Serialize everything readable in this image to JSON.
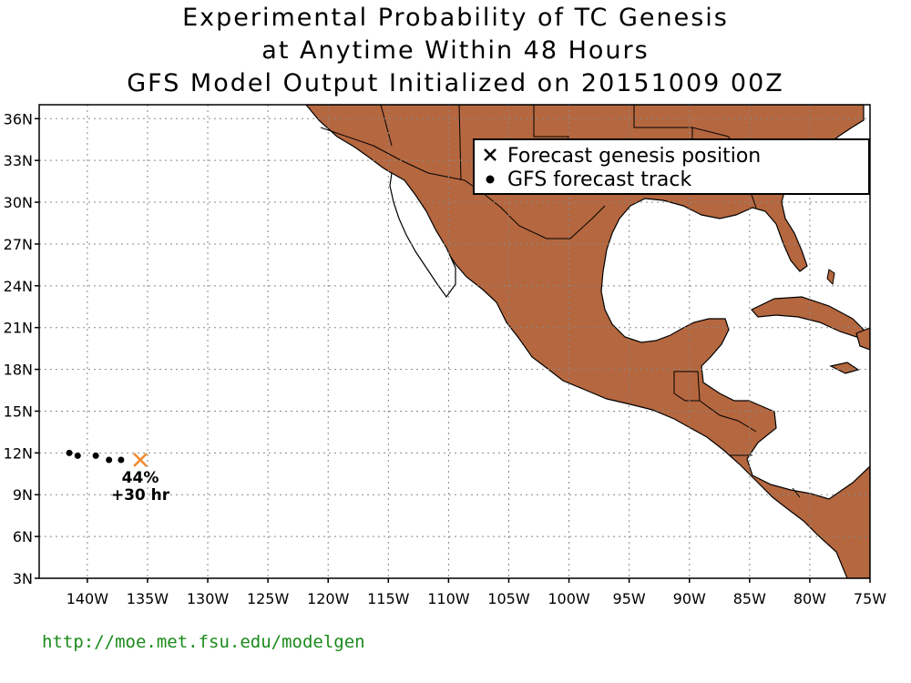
{
  "title": {
    "line1": "Experimental Probability of TC Genesis",
    "line2": "at Anytime Within 48 Hours",
    "line3": "GFS Model Output Initialized on 20151009 00Z"
  },
  "map": {
    "lon_range": [
      -144,
      -75
    ],
    "lat_range": [
      3,
      37
    ],
    "land_color": "#b5673f",
    "ocean_color": "#ffffff",
    "gridlines": true,
    "lat_ticks": [
      {
        "value": 36,
        "label": "36N"
      },
      {
        "value": 33,
        "label": "33N"
      },
      {
        "value": 30,
        "label": "30N"
      },
      {
        "value": 27,
        "label": "27N"
      },
      {
        "value": 24,
        "label": "24N"
      },
      {
        "value": 21,
        "label": "21N"
      },
      {
        "value": 18,
        "label": "18N"
      },
      {
        "value": 15,
        "label": "15N"
      },
      {
        "value": 12,
        "label": "12N"
      },
      {
        "value": 9,
        "label": "9N"
      },
      {
        "value": 6,
        "label": "6N"
      },
      {
        "value": 3,
        "label": "3N"
      }
    ],
    "lon_ticks": [
      {
        "value": -140,
        "label": "140W"
      },
      {
        "value": -135,
        "label": "135W"
      },
      {
        "value": -130,
        "label": "130W"
      },
      {
        "value": -125,
        "label": "125W"
      },
      {
        "value": -120,
        "label": "120W"
      },
      {
        "value": -115,
        "label": "115W"
      },
      {
        "value": -110,
        "label": "110W"
      },
      {
        "value": -105,
        "label": "105W"
      },
      {
        "value": -100,
        "label": "100W"
      },
      {
        "value": -95,
        "label": "95W"
      },
      {
        "value": -90,
        "label": "90W"
      },
      {
        "value": -85,
        "label": "85W"
      },
      {
        "value": -80,
        "label": "80W"
      },
      {
        "value": -75,
        "label": "75W"
      }
    ]
  },
  "track": {
    "points": [
      {
        "lon": -141.5,
        "lat": 12.0
      },
      {
        "lon": -140.8,
        "lat": 11.8
      },
      {
        "lon": -139.3,
        "lat": 11.8
      },
      {
        "lon": -138.2,
        "lat": 11.5
      },
      {
        "lon": -137.2,
        "lat": 11.5
      }
    ],
    "genesis": {
      "lon": -135.6,
      "lat": 11.5,
      "color": "#f08a30"
    },
    "probability_label": "44%",
    "time_label": "+30 hr"
  },
  "legend": {
    "genesis_label": "Forecast genesis position",
    "track_label": "GFS forecast track"
  },
  "footer": {
    "url": "http://moe.met.fsu.edu/modelgen",
    "url_color": "#1a8a1a"
  }
}
